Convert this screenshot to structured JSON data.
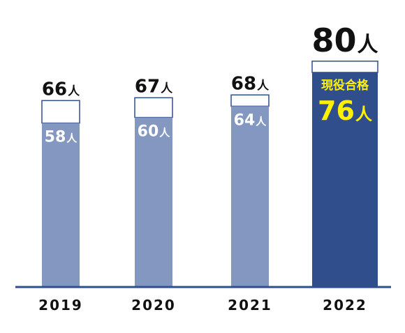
{
  "chart_data": {
    "type": "bar",
    "stacked": true,
    "categories": [
      "2019",
      "2020",
      "2021",
      "2022"
    ],
    "series": [
      {
        "values": [
          58,
          60,
          64,
          76
        ]
      },
      {
        "values": [
          8,
          7,
          4,
          4
        ]
      }
    ],
    "totals": [
      66,
      67,
      68,
      80
    ],
    "unit": "人",
    "highlight": {
      "category": "2022",
      "label": "現役合格"
    },
    "ylim": [
      0,
      80
    ],
    "grid": false,
    "legend": "none",
    "colors": {
      "current_regular": "#8397c0",
      "current_highlight": "#2f4e8b",
      "remainder_fill": "#ffffff",
      "remainder_stroke": "#2f4e8b",
      "baseline": "#2f4e8b",
      "highlight_text": "#fff200",
      "label_dark": "#111111",
      "label_light": "#ffffff"
    }
  }
}
